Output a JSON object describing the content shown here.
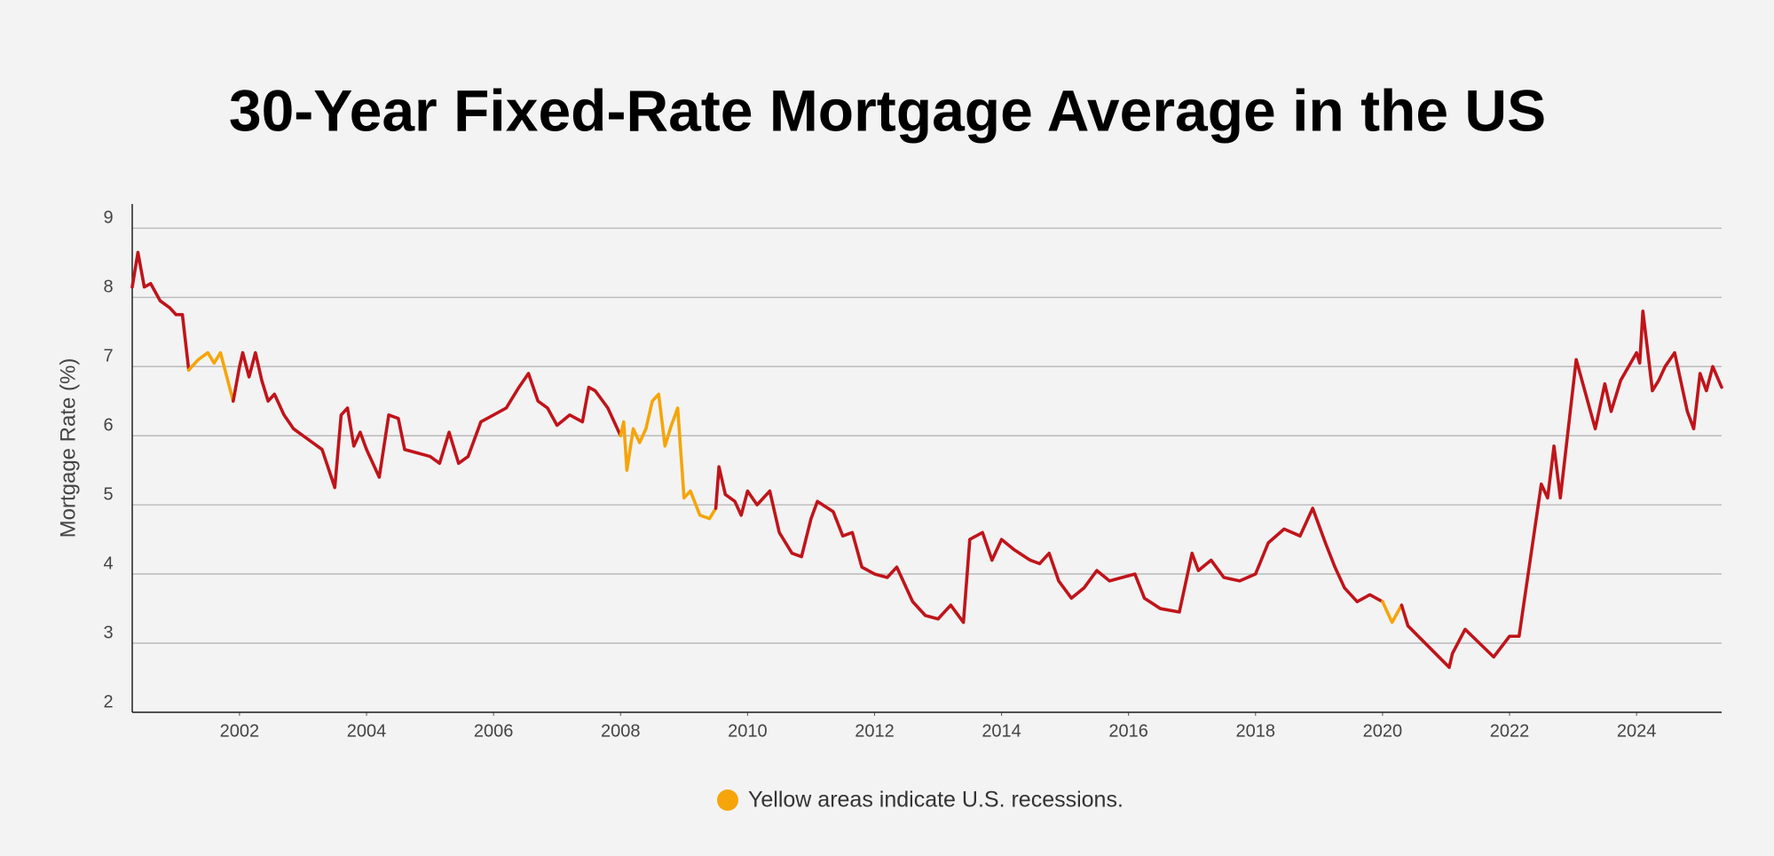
{
  "chart_data": {
    "type": "line",
    "title": "30-Year Fixed-Rate Mortgage Average in the US",
    "ylabel": "Mortgage Rate (%)",
    "note": "Yellow areas indicate U.S. recessions.",
    "note_color": "#f5a50a",
    "xlim": [
      2000.31,
      2025.34
    ],
    "xticks": [
      2002,
      2004,
      2006,
      2008,
      2010,
      2012,
      2014,
      2016,
      2018,
      2020,
      2022,
      2024
    ],
    "ylim": [
      2,
      9.35
    ],
    "yticks": [
      2,
      3,
      4,
      5,
      6,
      7,
      8,
      9
    ],
    "grid": true,
    "series": [
      {
        "color": "#c0141a",
        "x": [
          2000.31,
          2000.4,
          2000.5,
          2000.6,
          2000.75,
          2000.9,
          2001.0,
          2001.1,
          2001.2
        ],
        "values": [
          8.15,
          8.65,
          8.15,
          8.2,
          7.95,
          7.85,
          7.75,
          7.75,
          6.95
        ]
      },
      {
        "color": "#f5a50a",
        "x": [
          2001.2,
          2001.35,
          2001.5,
          2001.6,
          2001.7,
          2001.9
        ],
        "values": [
          6.95,
          7.1,
          7.2,
          7.05,
          7.2,
          6.5
        ]
      },
      {
        "color": "#c0141a",
        "x": [
          2001.9,
          2002.0,
          2002.05,
          2002.15,
          2002.25,
          2002.35,
          2002.45,
          2002.55,
          2002.7,
          2002.85,
          2003.0,
          2003.15,
          2003.3,
          2003.5,
          2003.6,
          2003.7,
          2003.8,
          2003.9,
          2004.0,
          2004.2,
          2004.35,
          2004.5,
          2004.6,
          2004.8,
          2005.0,
          2005.15,
          2005.3,
          2005.45,
          2005.6,
          2005.8,
          2006.0,
          2006.2,
          2006.4,
          2006.55,
          2006.7,
          2006.85,
          2007.0,
          2007.2,
          2007.4,
          2007.5,
          2007.6,
          2007.8,
          2008.0
        ],
        "values": [
          6.5,
          7.0,
          7.2,
          6.85,
          7.2,
          6.8,
          6.5,
          6.6,
          6.3,
          6.1,
          6.0,
          5.9,
          5.8,
          5.25,
          6.3,
          6.4,
          5.85,
          6.05,
          5.8,
          5.4,
          6.3,
          6.25,
          5.8,
          5.75,
          5.7,
          5.6,
          6.05,
          5.6,
          5.7,
          6.2,
          6.3,
          6.4,
          6.7,
          6.9,
          6.5,
          6.4,
          6.15,
          6.3,
          6.2,
          6.7,
          6.65,
          6.4,
          6.0
        ]
      },
      {
        "color": "#f5a50a",
        "x": [
          2008.0,
          2008.05,
          2008.1,
          2008.2,
          2008.3,
          2008.4,
          2008.5,
          2008.6,
          2008.7,
          2008.8,
          2008.9,
          2009.0,
          2009.1,
          2009.25,
          2009.4,
          2009.5
        ],
        "values": [
          6.0,
          6.2,
          5.5,
          6.1,
          5.9,
          6.1,
          6.5,
          6.6,
          5.85,
          6.15,
          6.4,
          5.1,
          5.2,
          4.85,
          4.8,
          4.95
        ]
      },
      {
        "color": "#c0141a",
        "x": [
          2009.5,
          2009.55,
          2009.65,
          2009.8,
          2009.9,
          2010.0,
          2010.15,
          2010.35,
          2010.5,
          2010.7,
          2010.85,
          2011.0,
          2011.1,
          2011.35,
          2011.5,
          2011.65,
          2011.8,
          2012.0,
          2012.2,
          2012.35,
          2012.6,
          2012.8,
          2013.0,
          2013.2,
          2013.4,
          2013.5,
          2013.7,
          2013.85,
          2014.0,
          2014.2,
          2014.45,
          2014.6,
          2014.75,
          2014.9,
          2015.1,
          2015.3,
          2015.5,
          2015.7,
          2015.9,
          2016.1,
          2016.25,
          2016.5,
          2016.8,
          2017.0,
          2017.1,
          2017.3,
          2017.5,
          2017.75,
          2018.0,
          2018.2,
          2018.45,
          2018.7,
          2018.9,
          2019.1,
          2019.25,
          2019.4,
          2019.6,
          2019.8,
          2020.0
        ],
        "values": [
          4.95,
          5.55,
          5.15,
          5.05,
          4.85,
          5.2,
          5.0,
          5.2,
          4.6,
          4.3,
          4.25,
          4.8,
          5.05,
          4.9,
          4.55,
          4.6,
          4.1,
          4.0,
          3.95,
          4.1,
          3.6,
          3.4,
          3.35,
          3.55,
          3.3,
          4.5,
          4.6,
          4.2,
          4.5,
          4.35,
          4.2,
          4.15,
          4.3,
          3.9,
          3.65,
          3.8,
          4.05,
          3.9,
          3.95,
          4.0,
          3.65,
          3.5,
          3.45,
          4.3,
          4.05,
          4.2,
          3.95,
          3.9,
          4.0,
          4.45,
          4.65,
          4.55,
          4.95,
          4.45,
          4.1,
          3.8,
          3.6,
          3.7,
          3.6
        ]
      },
      {
        "color": "#f5a50a",
        "x": [
          2020.0,
          2020.15,
          2020.3
        ],
        "values": [
          3.6,
          3.3,
          3.55
        ]
      },
      {
        "color": "#c0141a",
        "x": [
          2020.3,
          2020.4,
          2021.05,
          2021.1,
          2021.3,
          2021.75,
          2022.0,
          2022.15,
          2022.5,
          2022.6,
          2022.7,
          2022.8,
          2023.05,
          2023.35,
          2023.5,
          2023.6,
          2023.75,
          2024.0,
          2024.05,
          2024.1,
          2024.25,
          2024.35,
          2024.45,
          2024.6,
          2024.8,
          2024.9,
          2025.0,
          2025.1,
          2025.2,
          2025.34
        ],
        "values": [
          3.55,
          3.25,
          2.65,
          2.85,
          3.2,
          2.8,
          3.1,
          3.1,
          5.3,
          5.1,
          5.85,
          5.1,
          7.1,
          6.1,
          6.75,
          6.35,
          6.8,
          7.2,
          7.05,
          7.8,
          6.65,
          6.8,
          7.0,
          7.2,
          6.35,
          6.1,
          6.9,
          6.65,
          7.0,
          6.7
        ]
      }
    ]
  }
}
